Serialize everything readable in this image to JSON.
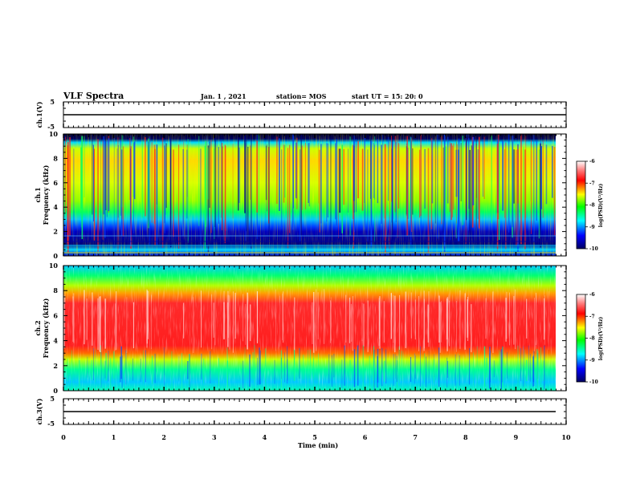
{
  "header": {
    "title": "VLF Spectra",
    "date": "Jan. 1 , 2021",
    "station": "station= MOS",
    "start_ut": "start UT = 15: 20: 0"
  },
  "chart_data": {
    "type": "heatmap",
    "xlabel": "Time (min)",
    "xlim": [
      0,
      10
    ],
    "x_ticks": [
      "0",
      "1",
      "2",
      "3",
      "4",
      "5",
      "6",
      "7",
      "8",
      "9",
      "10"
    ],
    "panels": [
      {
        "id": "ch1-voltage",
        "type": "line",
        "ylabel": "ch.1(V)",
        "ylim": [
          -5,
          5
        ],
        "y_ticks": [
          "5",
          "-5"
        ],
        "level": -0.2
      },
      {
        "id": "ch1-spectrogram",
        "type": "heatmap",
        "ylabel_top": "ch.1",
        "ylabel": "Frequency (kHz)",
        "ylim": [
          0,
          10
        ],
        "y_ticks": [
          "0",
          "2",
          "4",
          "6",
          "8",
          "10"
        ],
        "dominant_band_khz": [
          3,
          9.5
        ]
      },
      {
        "id": "ch2-spectrogram",
        "type": "heatmap",
        "ylabel_top": "ch.2",
        "ylabel": "Frequency (kHz)",
        "ylim": [
          0,
          10
        ],
        "y_ticks": [
          "0",
          "2",
          "4",
          "6",
          "8",
          "10"
        ],
        "dominant_band_khz": [
          3,
          8
        ]
      },
      {
        "id": "ch3-voltage",
        "type": "line",
        "ylabel": "ch.3(V)",
        "ylim": [
          -5,
          5
        ],
        "y_ticks": [
          "5",
          "-5"
        ],
        "level": 0
      }
    ],
    "colorbars": [
      {
        "label": "log(PSD)(V²/Hz)",
        "ticks": [
          "-6",
          "-7",
          "-8",
          "-9",
          "-10"
        ],
        "range": [
          -10,
          -6
        ]
      },
      {
        "label": "log(PSD)(V²/Hz)",
        "ticks": [
          "-6",
          "-7",
          "-8",
          "-9",
          "-10"
        ],
        "range": [
          -10,
          -6
        ]
      }
    ],
    "colormap": [
      "#00007f",
      "#0000ff",
      "#00ffff",
      "#00ff00",
      "#ffff00",
      "#ff0000",
      "#ffffff"
    ]
  }
}
